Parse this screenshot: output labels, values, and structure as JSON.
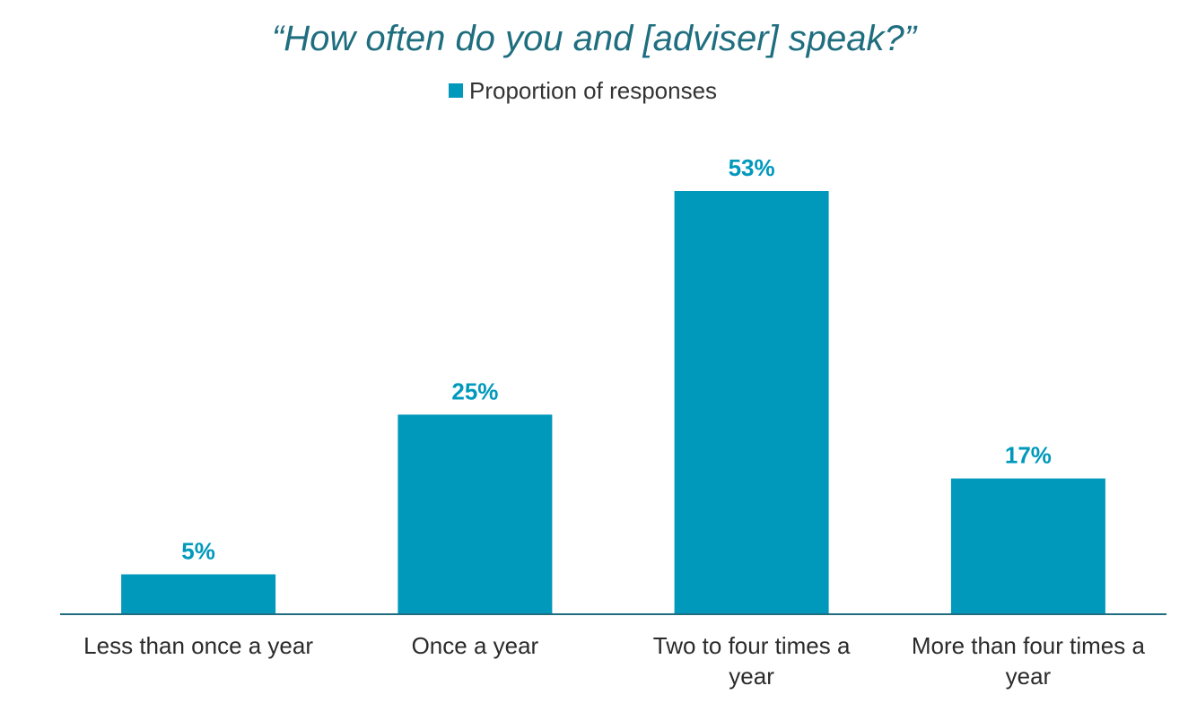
{
  "colors": {
    "bar": "#0099BC",
    "title": "#1F6E7F",
    "axis": "#1F6E7F",
    "label": "#0099BC"
  },
  "chart_data": {
    "type": "bar",
    "title": "“How often do you and [adviser] speak?”",
    "legend": {
      "position": "top-center",
      "entries": [
        "Proportion of responses"
      ]
    },
    "categories": [
      [
        "Less than once a year"
      ],
      [
        "Once a year"
      ],
      [
        "Two to four times a",
        "year"
      ],
      [
        "More than four times a",
        "year"
      ]
    ],
    "series": [
      {
        "name": "Proportion of responses",
        "values": [
          5,
          25,
          53,
          17
        ]
      }
    ],
    "data_labels": [
      "5%",
      "25%",
      "53%",
      "17%"
    ],
    "ylim": [
      0,
      53
    ],
    "grid": false,
    "xlabel": "",
    "ylabel": ""
  }
}
